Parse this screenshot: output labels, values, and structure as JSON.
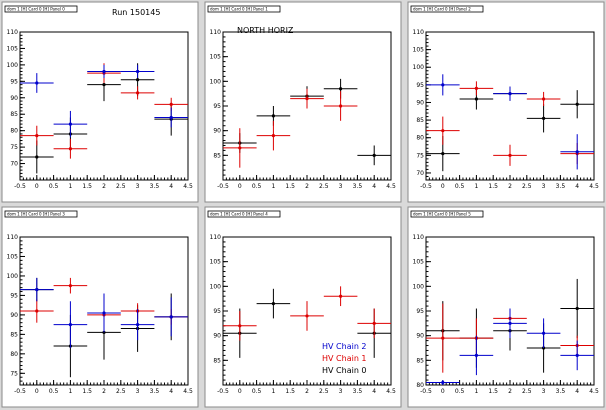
{
  "colors": {
    "chain0": "#000000",
    "chain1": "#dd0000",
    "chain2": "#0000cc"
  },
  "legend": {
    "entries": [
      {
        "label": "HV Chain 2",
        "color": "#0000cc"
      },
      {
        "label": "HV Chain 1",
        "color": "#dd0000"
      },
      {
        "label": "HV Chain 0",
        "color": "#000000"
      }
    ]
  },
  "chart_data": [
    {
      "type": "scatter",
      "pad_title": "dom 1 [H] Card 0 [H] Panel 0",
      "title": "Run 150145",
      "xlim": [
        -0.5,
        4.5
      ],
      "ylim": [
        65,
        110
      ],
      "xticks": [
        "-0.5",
        "0",
        "0.5",
        "1",
        "1.5",
        "2",
        "2.5",
        "3",
        "3.5",
        "4",
        "4.5"
      ],
      "yticks": [
        "70",
        "75",
        "80",
        "85",
        "90",
        "95",
        "100",
        "105",
        "110"
      ],
      "series": [
        {
          "color": "#000000",
          "x": [
            0,
            1,
            2,
            3,
            4
          ],
          "y": [
            72,
            79,
            94,
            95.5,
            83.5
          ],
          "yerr": [
            5,
            5,
            5,
            5,
            5
          ]
        },
        {
          "color": "#dd0000",
          "x": [
            0,
            1,
            2,
            3,
            4
          ],
          "y": [
            78.5,
            74.5,
            97.5,
            91.5,
            88
          ],
          "yerr": [
            3,
            3,
            3,
            2,
            2
          ]
        },
        {
          "color": "#0000cc",
          "x": [
            0,
            1,
            2,
            3,
            4
          ],
          "y": [
            94.5,
            82,
            98,
            98,
            84
          ],
          "yerr": [
            3,
            4,
            2,
            2,
            3
          ]
        }
      ]
    },
    {
      "type": "scatter",
      "pad_title": "dom 1 [H] Card 0 [H] Panel 1",
      "title": "NORTH HORIZ",
      "xlim": [
        -0.5,
        4.5
      ],
      "ylim": [
        80,
        110
      ],
      "xticks": [
        "-0.5",
        "0",
        "0.5",
        "1",
        "1.5",
        "2",
        "2.5",
        "3",
        "3.5",
        "4",
        "4.5"
      ],
      "yticks": [
        "85",
        "90",
        "95",
        "100",
        "105",
        "110"
      ],
      "series": [
        {
          "color": "#000000",
          "x": [
            0,
            1,
            2,
            3,
            4
          ],
          "y": [
            87.5,
            93,
            97,
            98.5,
            85
          ],
          "yerr": [
            2,
            2,
            2,
            2,
            2
          ]
        },
        {
          "color": "#dd0000",
          "x": [
            0,
            1,
            2,
            3,
            4
          ],
          "y": [
            86.5,
            89,
            96.5,
            95,
            null
          ],
          "yerr": [
            4,
            3,
            2,
            3,
            0
          ]
        }
      ]
    },
    {
      "type": "scatter",
      "pad_title": "dom 1 [H] Card 0 [H] Panel 2",
      "title": "",
      "xlim": [
        -0.5,
        4.5
      ],
      "ylim": [
        68,
        110
      ],
      "xticks": [
        "-0.5",
        "0",
        "0.5",
        "1",
        "1.5",
        "2",
        "2.5",
        "3",
        "3.5",
        "4",
        "4.5"
      ],
      "yticks": [
        "70",
        "75",
        "80",
        "85",
        "90",
        "95",
        "100",
        "105",
        "110"
      ],
      "series": [
        {
          "color": "#000000",
          "x": [
            0,
            1,
            2,
            3,
            4
          ],
          "y": [
            75.5,
            91,
            92.5,
            85.5,
            89.5
          ],
          "yerr": [
            5,
            3,
            2,
            4,
            4
          ]
        },
        {
          "color": "#dd0000",
          "x": [
            0,
            1,
            2,
            3,
            4
          ],
          "y": [
            82,
            94,
            75,
            91,
            75.5
          ],
          "yerr": [
            4,
            2,
            3,
            2,
            3
          ]
        },
        {
          "color": "#0000cc",
          "x": [
            0,
            1,
            2,
            3,
            4
          ],
          "y": [
            95,
            null,
            92.5,
            null,
            76
          ],
          "yerr": [
            3,
            0,
            2,
            0,
            5
          ]
        }
      ]
    },
    {
      "type": "scatter",
      "pad_title": "dom 1 [H] Card 0 [H] Panel 3",
      "title": "",
      "xlim": [
        -0.5,
        4.5
      ],
      "ylim": [
        72,
        110
      ],
      "xticks": [
        "-0.5",
        "0",
        "0.5",
        "1",
        "1.5",
        "2",
        "2.5",
        "3",
        "3.5",
        "4",
        "4.5"
      ],
      "yticks": [
        "75",
        "80",
        "85",
        "90",
        "95",
        "100",
        "105",
        "110"
      ],
      "series": [
        {
          "color": "#000000",
          "x": [
            0,
            1,
            2,
            3,
            4
          ],
          "y": [
            96.5,
            82,
            85.5,
            86.5,
            89.5
          ],
          "yerr": [
            3,
            8,
            7,
            6,
            6
          ]
        },
        {
          "color": "#dd0000",
          "x": [
            0,
            1,
            2,
            3,
            4
          ],
          "y": [
            91,
            97.5,
            90,
            91,
            89.5
          ],
          "yerr": [
            3,
            2,
            3,
            2,
            2
          ]
        },
        {
          "color": "#0000cc",
          "x": [
            0,
            1,
            2,
            3,
            4
          ],
          "y": [
            96.5,
            87.5,
            90.5,
            87.5,
            89.5
          ],
          "yerr": [
            3,
            6,
            5,
            4,
            5
          ]
        }
      ]
    },
    {
      "type": "scatter",
      "pad_title": "dom 1 [H] Card 0 [H] Panel 4",
      "title": "",
      "xlim": [
        -0.5,
        4.5
      ],
      "ylim": [
        80,
        110
      ],
      "xticks": [
        "-0.5",
        "0",
        "0.5",
        "1",
        "1.5",
        "2",
        "2.5",
        "3",
        "3.5",
        "4",
        "4.5"
      ],
      "yticks": [
        "85",
        "90",
        "95",
        "100",
        "105",
        "110"
      ],
      "series": [
        {
          "color": "#000000",
          "x": [
            0,
            1,
            2,
            3,
            4
          ],
          "y": [
            90.5,
            96.5,
            null,
            null,
            90.5
          ],
          "yerr": [
            5,
            3,
            0,
            0,
            5
          ]
        },
        {
          "color": "#dd0000",
          "x": [
            0,
            1,
            2,
            3,
            4
          ],
          "y": [
            92,
            null,
            94,
            98,
            92.5
          ],
          "yerr": [
            3,
            0,
            3,
            2,
            3
          ]
        },
        {
          "color": "#0000cc",
          "x": [
            0,
            1,
            2,
            3,
            4
          ],
          "y": [
            null,
            null,
            null,
            null,
            null
          ],
          "yerr": [
            0,
            0,
            0,
            0,
            0
          ]
        }
      ]
    },
    {
      "type": "scatter",
      "pad_title": "dom 1 [H] Card 0 [H] Panel 5",
      "title": "",
      "xlim": [
        -0.5,
        4.5
      ],
      "ylim": [
        80,
        110
      ],
      "xticks": [
        "-0.5",
        "0",
        "0.5",
        "1",
        "1.5",
        "2",
        "2.5",
        "3",
        "3.5",
        "4",
        "4.5"
      ],
      "yticks": [
        "80",
        "85",
        "90",
        "95",
        "100",
        "105",
        "110"
      ],
      "series": [
        {
          "color": "#000000",
          "x": [
            0,
            1,
            2,
            3,
            4
          ],
          "y": [
            91,
            89.5,
            91,
            87.5,
            95.5
          ],
          "yerr": [
            6,
            6,
            4,
            5,
            6
          ]
        },
        {
          "color": "#dd0000",
          "x": [
            0,
            1,
            2,
            3,
            4
          ],
          "y": [
            89.5,
            89.5,
            93.5,
            null,
            88
          ],
          "yerr": [
            7,
            4,
            2,
            0,
            2
          ]
        },
        {
          "color": "#0000cc",
          "x": [
            0,
            1,
            2,
            3,
            4
          ],
          "y": [
            80.5,
            86,
            92.5,
            90.5,
            86
          ],
          "yerr": [
            0.5,
            4,
            3,
            3,
            3
          ]
        }
      ]
    }
  ]
}
